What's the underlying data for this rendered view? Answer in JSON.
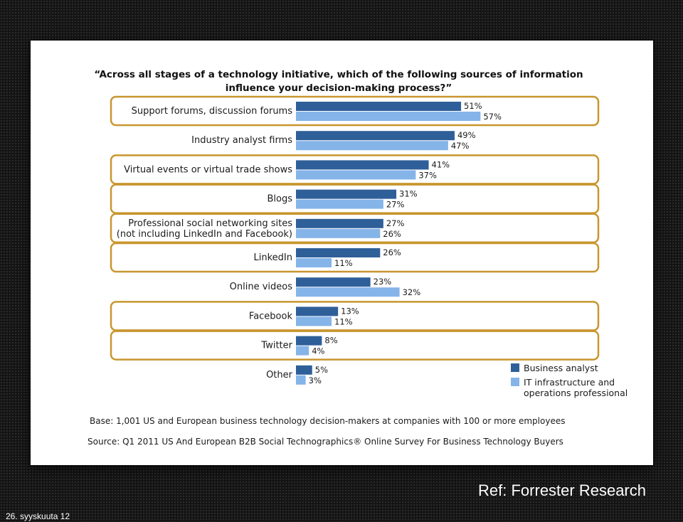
{
  "slide": {
    "ref_text": "Ref: Forrester Research",
    "date_text": "26. syyskuuta 12"
  },
  "chart_data": {
    "type": "bar",
    "orientation": "horizontal",
    "title": [
      "“Across all stages of a technology initiative, which of the following sources of information",
      "influence your decision-making process?”"
    ],
    "categories": [
      [
        "Support forums, discussion forums"
      ],
      [
        "Industry analyst firms"
      ],
      [
        "Virtual events or virtual trade shows"
      ],
      [
        "Blogs"
      ],
      [
        "Professional social networking sites",
        "(not including LinkedIn and Facebook)"
      ],
      [
        "LinkedIn"
      ],
      [
        "Online videos"
      ],
      [
        "Facebook"
      ],
      [
        "Twitter"
      ],
      [
        "Other"
      ]
    ],
    "highlighted": [
      true,
      false,
      true,
      true,
      true,
      true,
      false,
      true,
      true,
      false
    ],
    "series": [
      {
        "name": "Business analyst",
        "color": "#2f5f99",
        "values": [
          51,
          49,
          41,
          31,
          27,
          26,
          23,
          13,
          8,
          5
        ],
        "labels": [
          "51%",
          "49%",
          "41%",
          "31%",
          "27%",
          "26%",
          "23%",
          "13%",
          "8%",
          "5%"
        ]
      },
      {
        "name": "IT infrastructure and operations professional",
        "color": "#85b4e8",
        "values": [
          57,
          47,
          37,
          27,
          26,
          11,
          32,
          11,
          4,
          3
        ],
        "labels": [
          "57%",
          "47%",
          "37%",
          "27%",
          "26%",
          "11%",
          "32%",
          "11%",
          "4%",
          "3%"
        ]
      }
    ],
    "legend": {
      "position": "bottom-right",
      "entries": [
        [
          "Business analyst"
        ],
        [
          "IT infrastructure and",
          "operations professional"
        ]
      ]
    },
    "notes": [
      "Base: 1,001 US and European business technology decision-makers at companies with 100 or more employees",
      "Source: Q1 2011 US And European B2B Social Technographics® Online Survey For Business Technology Buyers"
    ],
    "highlight_color": "#c8962e"
  }
}
